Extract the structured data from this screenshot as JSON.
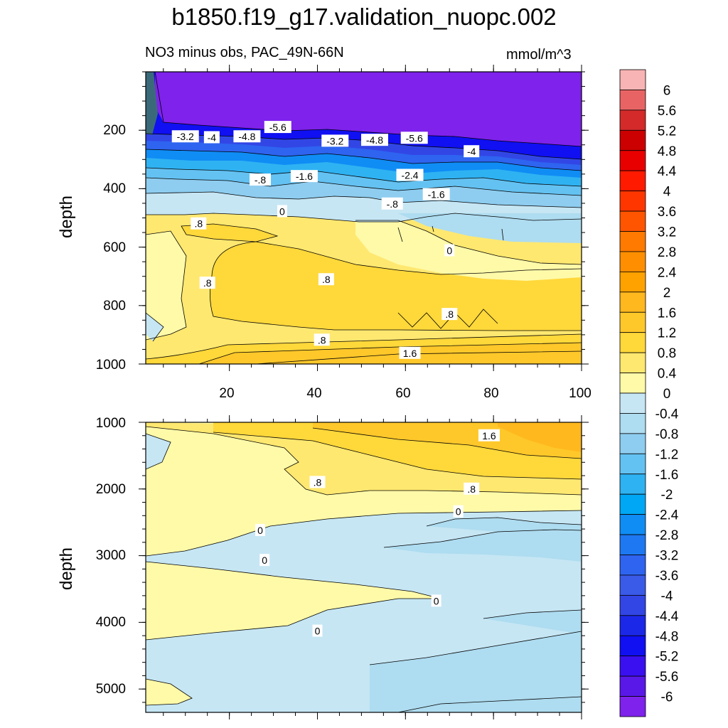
{
  "chart_data": {
    "type": "contour",
    "title": "b1850.f19_g17.validation_nuopc.002",
    "subtitle": "NO3 minus obs, PAC_49N-66N",
    "units": "mmol/m^3",
    "colorbar": {
      "levels": [
        "6",
        "5.6",
        "5.2",
        "4.8",
        "4.4",
        "4",
        "3.6",
        "3.2",
        "2.8",
        "2.4",
        "2",
        "1.6",
        "1.2",
        "0.8",
        "0.4",
        "0",
        "-0.4",
        "-0.8",
        "-1.2",
        "-1.6",
        "-2",
        "-2.4",
        "-2.8",
        "-3.2",
        "-3.6",
        "-4",
        "-4.4",
        "-4.8",
        "-5.2",
        "-5.6",
        "-6"
      ],
      "colors": [
        "#F8B4B4",
        "#E86464",
        "#D42A2A",
        "#CC0000",
        "#E80000",
        "#FF1A00",
        "#FF3600",
        "#FF5500",
        "#FF7A00",
        "#FF8F00",
        "#FFA200",
        "#FFB81E",
        "#FFC82A",
        "#FFD83A",
        "#FFE870",
        "#FFFAA8",
        "#C6E6F4",
        "#AEDCF0",
        "#8ECDF0",
        "#64C2F2",
        "#2FB2F2",
        "#00A7F5",
        "#108CF5",
        "#1E78F2",
        "#2E64F0",
        "#3A5AE8",
        "#3246E6",
        "#1C28E8",
        "#1010F2",
        "#3A10F0",
        "#5A18E8",
        "#7E22EC"
      ]
    },
    "top_panel": {
      "ylabel": "depth",
      "xlim": [
        1,
        100
      ],
      "ylim": [
        1000,
        0
      ],
      "x_ticks": [
        "20",
        "40",
        "60",
        "80",
        "100"
      ],
      "y_ticks": [
        "200",
        "400",
        "600",
        "800",
        "1000"
      ],
      "contour_labels": [
        {
          "text": "-3.2",
          "x": 10,
          "y": 222
        },
        {
          "text": "-4",
          "x": 16,
          "y": 225
        },
        {
          "text": "-4.8",
          "x": 24,
          "y": 222
        },
        {
          "text": "-5.6",
          "x": 31,
          "y": 190
        },
        {
          "text": "-3.2",
          "x": 44,
          "y": 237
        },
        {
          "text": "-4.8",
          "x": 53,
          "y": 234
        },
        {
          "text": "-5.6",
          "x": 62,
          "y": 227
        },
        {
          "text": "-4",
          "x": 75,
          "y": 273
        },
        {
          "text": "-.8",
          "x": 27,
          "y": 370
        },
        {
          "text": "-1.6",
          "x": 37,
          "y": 358
        },
        {
          "text": "-2.4",
          "x": 61,
          "y": 354
        },
        {
          "text": "-1.6",
          "x": 67,
          "y": 420
        },
        {
          "text": "-.8",
          "x": 57,
          "y": 452
        },
        {
          "text": "0",
          "x": 32,
          "y": 478
        },
        {
          "text": ".8",
          "x": 13,
          "y": 520
        },
        {
          "text": "0",
          "x": 70,
          "y": 612
        },
        {
          "text": ".8",
          "x": 15,
          "y": 723
        },
        {
          "text": ".8",
          "x": 42,
          "y": 711
        },
        {
          "text": ".8",
          "x": 70,
          "y": 830
        },
        {
          "text": ".8",
          "x": 41,
          "y": 918
        },
        {
          "text": "1.6",
          "x": 61,
          "y": 963
        }
      ]
    },
    "bottom_panel": {
      "ylabel": "depth",
      "xlim": [
        1,
        100
      ],
      "ylim": [
        5350,
        1000
      ],
      "y_ticks": [
        "1000",
        "2000",
        "3000",
        "4000",
        "5000"
      ],
      "contour_labels": [
        {
          "text": "1.6",
          "x": 79,
          "y": 1200
        },
        {
          "text": ".8",
          "x": 40,
          "y": 1900
        },
        {
          "text": ".8",
          "x": 75,
          "y": 2000
        },
        {
          "text": "0",
          "x": 72,
          "y": 2340
        },
        {
          "text": "0",
          "x": 27,
          "y": 2620
        },
        {
          "text": "0",
          "x": 28,
          "y": 3070
        },
        {
          "text": "0",
          "x": 67,
          "y": 3680
        },
        {
          "text": "0",
          "x": 40,
          "y": 4130
        }
      ]
    }
  }
}
